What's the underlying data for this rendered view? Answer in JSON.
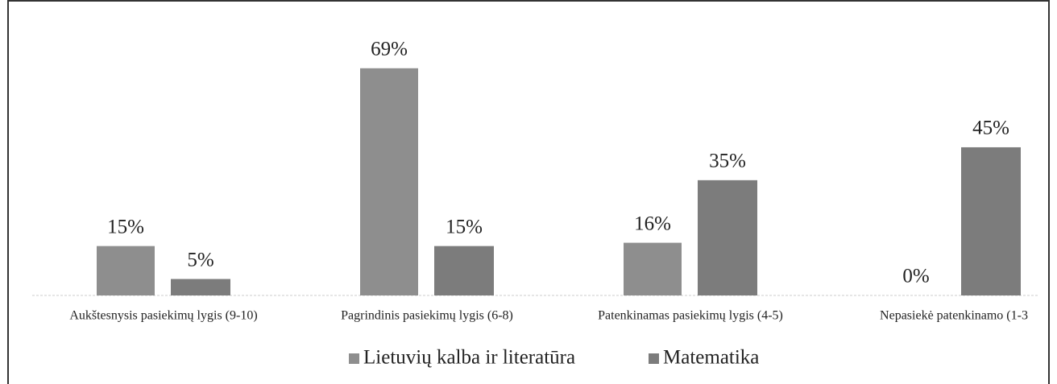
{
  "chart_data": {
    "type": "bar",
    "categories": [
      "Aukštesnysis pasiekimų lygis (9-10)",
      "Pagrindinis pasiekimų lygis (6-8)",
      "Patenkinamas pasiekimų lygis (4-5)",
      "Nepasiekė patenkinamo (1-3"
    ],
    "series": [
      {
        "name": "Lietuvių kalba ir literatūra",
        "color": "#8e8e8e",
        "values": [
          15,
          69,
          16,
          0
        ],
        "value_labels": [
          "15%",
          "69%",
          "16%",
          "0%"
        ]
      },
      {
        "name": "Matematika",
        "color": "#7c7c7c",
        "values": [
          5,
          15,
          35,
          45
        ],
        "value_labels": [
          "5%",
          "15%",
          "35%",
          "45%"
        ]
      }
    ],
    "legend": "bottom"
  }
}
